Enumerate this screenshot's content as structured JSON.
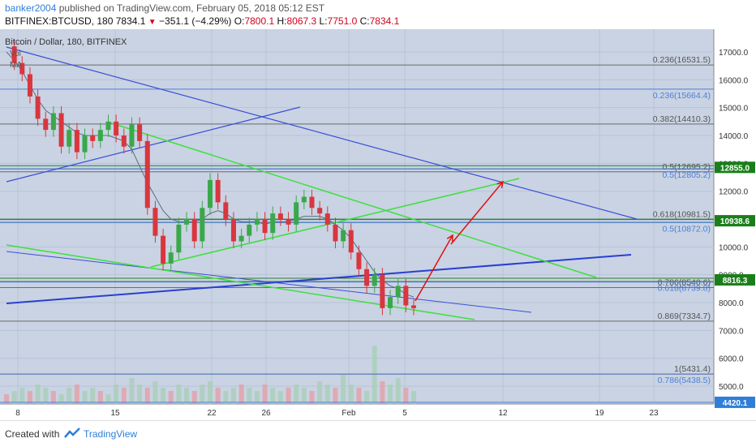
{
  "header": {
    "user": "banker2004",
    "published": "published on TradingView.com, February 05, 2018 05:12 EST",
    "symbol": "BITFINEX:BTCUSD, 180",
    "last": "7834.1",
    "change": "−351.1 (−4.29%)",
    "o_label": "O:",
    "o_value": "7800.1",
    "h_label": "H:",
    "h_value": "8067.3",
    "l_label": "L:",
    "l_value": "7751.0",
    "c_label": "C:",
    "c_value": "7834.1"
  },
  "chart_data": {
    "type": "line",
    "title": "Bitcoin / Dollar, 180, BITFINEX",
    "legend": [
      "Vol",
      "MA"
    ],
    "ylim": [
      4000,
      17500
    ],
    "y_ticks": [
      "17000.0",
      "16000.0",
      "15000.0",
      "14000.0",
      "13000.0",
      "12000.0",
      "11000.0",
      "10000.0",
      "9000.0",
      "8000.0",
      "7000.0",
      "6000.0",
      "5000.0"
    ],
    "x_ticks": [
      "8",
      "15",
      "22",
      "26",
      "Feb",
      "5",
      "12",
      "19",
      "23"
    ],
    "price_badges": [
      {
        "label": "12855.0",
        "value": 12855,
        "color": "#1a7f1a"
      },
      {
        "label": "10938.6",
        "value": 10938.6,
        "color": "#1a7f1a"
      },
      {
        "label": "8816.3",
        "value": 8816.3,
        "color": "#1a7f1a"
      },
      {
        "label": "4420.1",
        "value": 4420.1,
        "color": "#2f7ed8"
      }
    ],
    "fib_levels_gray": [
      {
        "label": "0.236(16531.5)",
        "value": 16531.5
      },
      {
        "label": "0.382(14410.3)",
        "value": 14410.3
      },
      {
        "label": "0.5(12695.2)",
        "value": 12695.2
      },
      {
        "label": "0.618(10981.5)",
        "value": 10981.5
      },
      {
        "label": "0.786(8540.6)",
        "value": 8540.6
      },
      {
        "label": "0.869(7334.7)",
        "value": 7334.7
      },
      {
        "label": "1(5431.4)",
        "value": 5431.4
      }
    ],
    "fib_levels_blue": [
      {
        "label": "0.236(15664.4)",
        "value": 15664.4
      },
      {
        "label": "0.5(12805.2)",
        "value": 12805.2
      },
      {
        "label": "0.5(10872.0)",
        "value": 10872.0
      },
      {
        "label": "0.618(8739.8)",
        "value": 8739.8
      },
      {
        "label": "0.786(5438.5)",
        "value": 5438.5
      }
    ],
    "price_series": [
      17200,
      16600,
      16200,
      15400,
      14600,
      14200,
      14800,
      13600,
      14200,
      13400,
      14000,
      13800,
      14200,
      14500,
      14000,
      13600,
      14400,
      13800,
      11400,
      10400,
      9400,
      9800,
      10800,
      11000,
      10200,
      11400,
      12400,
      11600,
      11000,
      10200,
      10400,
      10800,
      11000,
      10500,
      11200,
      11000,
      10800,
      11600,
      11800,
      11400,
      11200,
      10800,
      10200,
      10600,
      9800,
      9200,
      8600,
      9000,
      7800,
      8200,
      8600,
      7900,
      7800
    ],
    "ma_series": [
      17000,
      16700,
      16300,
      15800,
      15300,
      14900,
      14700,
      14500,
      14300,
      14100,
      14000,
      14000,
      14000,
      14000,
      13900,
      13800,
      13500,
      12900,
      12300,
      11800,
      11300,
      11000,
      10900,
      10900,
      10900,
      11000,
      11200,
      11300,
      11200,
      11000,
      10900,
      10900,
      10900,
      10800,
      10900,
      10900,
      10900,
      11000,
      11100,
      11100,
      11100,
      11000,
      10800,
      10600,
      10300,
      9900,
      9500,
      9100,
      8800,
      8600,
      8500,
      8300,
      8200
    ],
    "volume": [
      3,
      4,
      5,
      4,
      6,
      5,
      4,
      3,
      5,
      6,
      4,
      5,
      4,
      3,
      6,
      5,
      8,
      6,
      5,
      7,
      5,
      4,
      6,
      5,
      4,
      6,
      7,
      5,
      4,
      5,
      6,
      5,
      4,
      6,
      5,
      4,
      5,
      6,
      5,
      4,
      7,
      6,
      5,
      9,
      6,
      5,
      4,
      18,
      7,
      6,
      8,
      5,
      4
    ]
  }
}
